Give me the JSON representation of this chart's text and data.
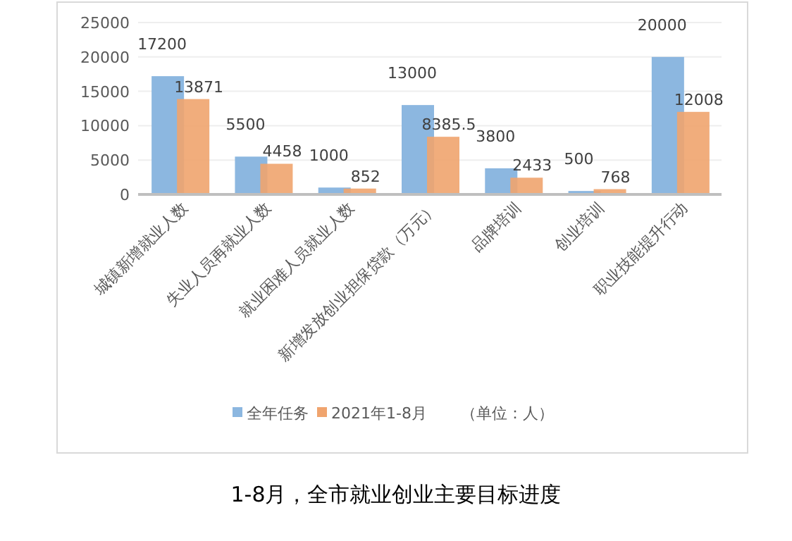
{
  "chart_data": {
    "type": "bar",
    "title": "1-8月，全市就业创业主要目标进度",
    "annotations": [
      "（单位：人）"
    ],
    "categories": [
      "城镇新增就业人数",
      "失业人员再就业人数",
      "就业困难人员就业人数",
      "新增发放创业担保贷款（万元）",
      "品牌培训",
      "创业培训",
      "职业技能提升行动"
    ],
    "series": [
      {
        "name": "全年任务",
        "color": "#8cb7e0",
        "values": [
          17200,
          5500,
          1000,
          13000,
          3800,
          500,
          20000
        ]
      },
      {
        "name": "2021年1-8月",
        "color": "#f0a46e",
        "values": [
          13871,
          4458,
          852,
          8385.5,
          2433,
          768,
          12008
        ]
      }
    ],
    "ylim": [
      0,
      25000
    ],
    "yticks": [
      0,
      5000,
      10000,
      15000,
      20000,
      25000
    ],
    "grid": "y",
    "legend": "bottom",
    "data_labels": true
  }
}
